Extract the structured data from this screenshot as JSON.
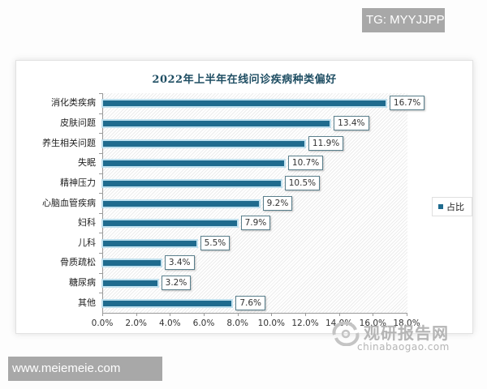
{
  "badges": {
    "top_right": "TG: MYYJJPP",
    "bottom_left": "www.meiemeie.com"
  },
  "watermark": {
    "cn": "观研报告网",
    "en": "chinabaogao.com"
  },
  "chart_data": {
    "type": "bar",
    "orientation": "horizontal",
    "title": "2022年上半年在线问诊疾病种类偏好",
    "xlabel": "",
    "ylabel": "",
    "categories": [
      "消化类疾病",
      "皮肤问题",
      "养生相关问题",
      "失眠",
      "精神压力",
      "心脑血管疾病",
      "妇科",
      "儿科",
      "骨质疏松",
      "糖尿病",
      "其他"
    ],
    "series": [
      {
        "name": "占比",
        "color": "#1f6b8e",
        "values": [
          16.7,
          13.4,
          11.9,
          10.7,
          10.5,
          9.2,
          7.9,
          5.5,
          3.4,
          3.2,
          7.6
        ],
        "labels": [
          "16.7%",
          "13.4%",
          "11.9%",
          "10.7%",
          "10.5%",
          "9.2%",
          "7.9%",
          "5.5%",
          "3.4%",
          "3.2%",
          "7.6%"
        ]
      }
    ],
    "xlim": [
      0,
      18
    ],
    "xticks": [
      "0.0%",
      "2.0%",
      "4.0%",
      "6.0%",
      "8.0%",
      "10.0%",
      "12.0%",
      "14.0%",
      "16.0%",
      "18.0%"
    ],
    "grid": false,
    "legend": {
      "position": "right",
      "entries": [
        "占比"
      ]
    }
  }
}
